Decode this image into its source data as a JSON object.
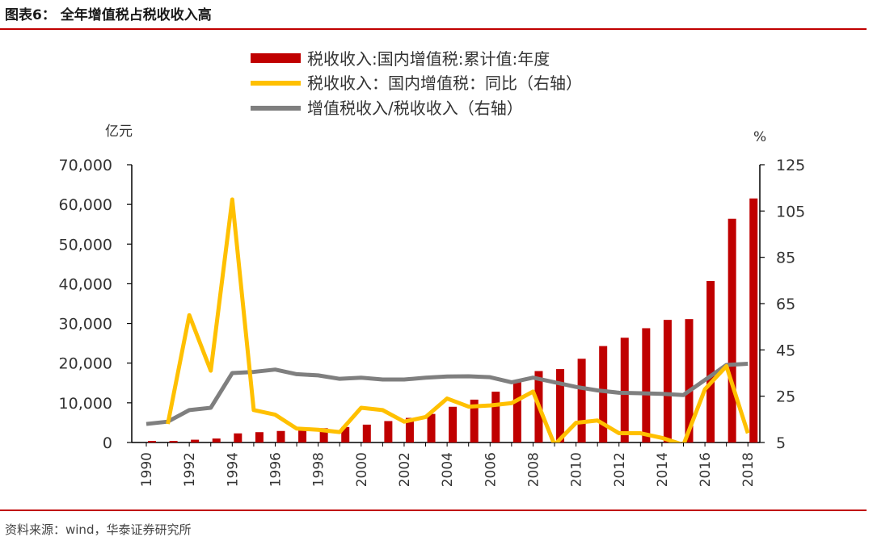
{
  "header": {
    "title": "图表6：  全年增值税占税收收入高"
  },
  "footer": {
    "source": "资料来源：wind，华泰证券研究所"
  },
  "colors": {
    "bar": "#c00000",
    "yoy": "#ffc000",
    "share": "#7f7f7f",
    "rule": "#c00000"
  },
  "chart_data": {
    "type": "bar",
    "unit_left": "亿元",
    "unit_right": "%",
    "ylim_left": [
      0,
      70000
    ],
    "ylim_right": [
      5,
      125
    ],
    "yticks_left": [
      "0",
      "10,000",
      "20,000",
      "30,000",
      "40,000",
      "50,000",
      "60,000",
      "70,000"
    ],
    "yticks_left_values": [
      0,
      10000,
      20000,
      30000,
      40000,
      50000,
      60000,
      70000
    ],
    "yticks_right": [
      "5",
      "25",
      "45",
      "65",
      "85",
      "105",
      "125"
    ],
    "yticks_right_values": [
      5,
      25,
      45,
      65,
      85,
      105,
      125
    ],
    "x": [
      1990,
      1991,
      1992,
      1993,
      1994,
      1995,
      1996,
      1997,
      1998,
      1999,
      2000,
      2001,
      2002,
      2003,
      2004,
      2005,
      2006,
      2007,
      2008,
      2009,
      2010,
      2011,
      2012,
      2013,
      2014,
      2015,
      2016,
      2017,
      2018
    ],
    "xtick_labels": [
      "1990",
      "1992",
      "1994",
      "1996",
      "1998",
      "2000",
      "2002",
      "2004",
      "2006",
      "2008",
      "2010",
      "2012",
      "2014",
      "2016",
      "2018"
    ],
    "series": [
      {
        "name": "税收收入:国内增值税:累计值:年度",
        "type": "bar",
        "axis": "left",
        "values": [
          400,
          400,
          700,
          1000,
          2300,
          2600,
          2900,
          3300,
          3600,
          3900,
          4500,
          5400,
          6200,
          7200,
          9000,
          10800,
          12800,
          15500,
          18000,
          18500,
          21100,
          24300,
          26400,
          28800,
          30900,
          31100,
          40700,
          56400,
          61500
        ]
      },
      {
        "name": "税收收入：国内增值税：同比（右轴）",
        "type": "line",
        "axis": "right",
        "values": [
          null,
          13,
          60,
          36,
          110,
          19,
          17,
          11,
          10.5,
          9.5,
          20,
          19,
          14,
          16,
          24,
          20.5,
          21,
          22,
          27,
          4,
          13.5,
          14.5,
          9,
          9,
          7,
          4,
          28,
          38,
          9
        ]
      },
      {
        "name": "增值税收入/税收收入（右轴）",
        "type": "line",
        "axis": "right",
        "values": [
          13,
          14,
          19,
          20,
          35,
          35.5,
          36.5,
          34.5,
          34,
          32.5,
          33,
          32.2,
          32.2,
          33,
          33.5,
          33.6,
          33.2,
          31,
          33,
          31,
          29,
          27.5,
          26.5,
          26.3,
          26,
          25.5,
          32,
          38.5,
          39
        ]
      }
    ]
  }
}
